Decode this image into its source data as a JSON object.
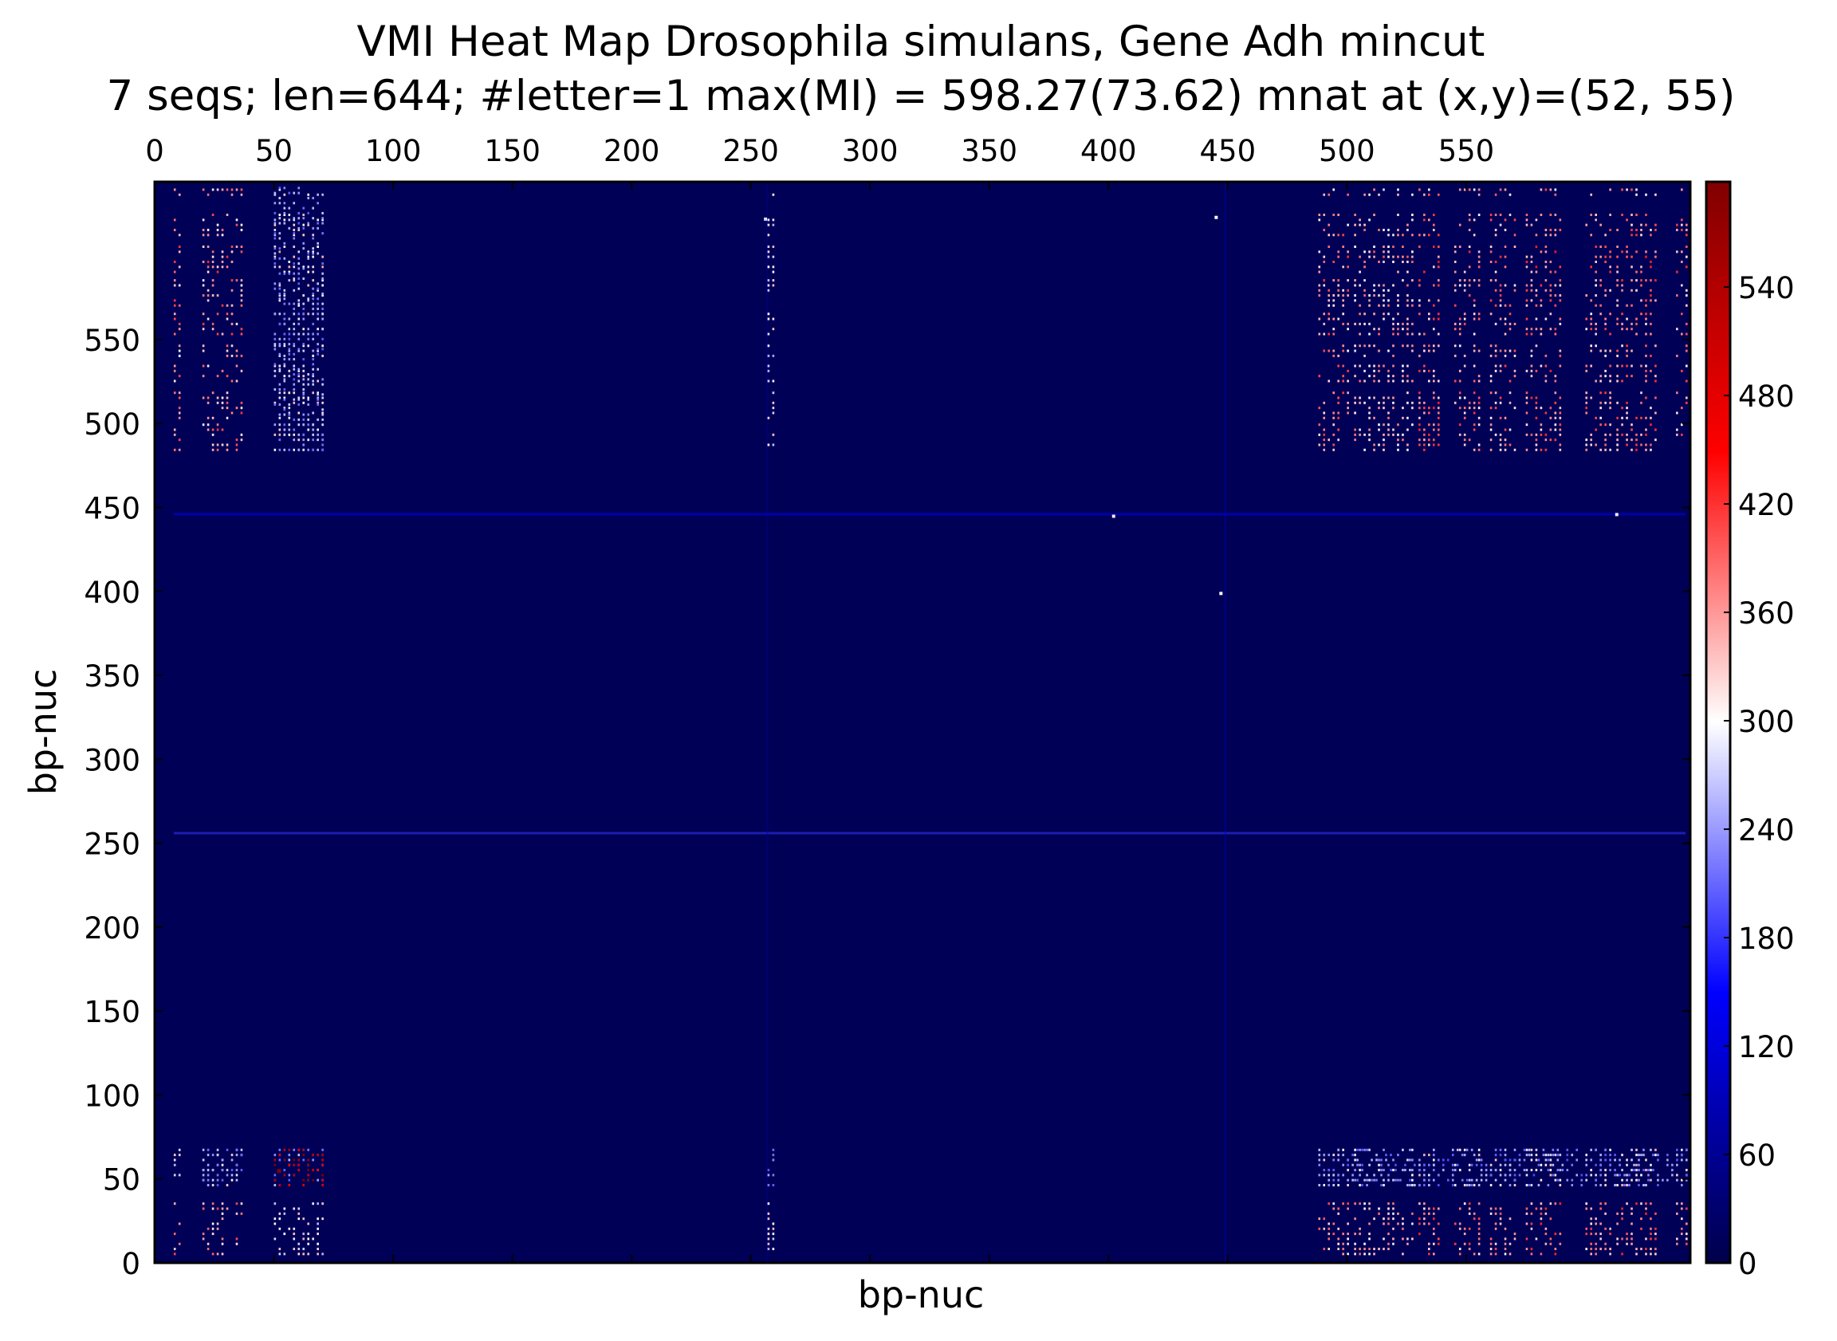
{
  "chart_data": {
    "type": "heatmap",
    "title": "VMI Heat Map Drosophila simulans, Gene Adh mincut",
    "subtitle": "7 seqs; len=644; #letter=1 max(MI) = 598.27(73.62) mnat at (x,y)=(52, 55)",
    "xlabel": "bp-nuc",
    "ylabel": "bp-nuc",
    "xlim": [
      0,
      644
    ],
    "ylim": [
      0,
      644
    ],
    "x_ticks": [
      0,
      50,
      100,
      150,
      200,
      250,
      300,
      350,
      400,
      450,
      500,
      550
    ],
    "y_ticks": [
      0,
      50,
      100,
      150,
      200,
      250,
      300,
      350,
      400,
      450,
      500,
      550
    ],
    "colorbar": {
      "range": [
        0,
        598.27
      ],
      "ticks": [
        0,
        60,
        120,
        180,
        240,
        300,
        360,
        420,
        480,
        540
      ],
      "colormap": [
        "#00004a",
        "#0000ff",
        "#ffffff",
        "#ff0000",
        "#800000"
      ]
    },
    "background_value": 10,
    "max_point": {
      "x": 52,
      "y": 55,
      "value": 598.27
    },
    "column_groups": [
      {
        "x_range": [
          8,
          10
        ],
        "value": 380
      },
      {
        "x_range": [
          20,
          36
        ],
        "value": 380
      },
      {
        "x_range": [
          50,
          70
        ],
        "value": 250
      },
      {
        "x_range": [
          257,
          259
        ],
        "value": 250
      },
      {
        "x_range": [
          488,
          500
        ],
        "value": 380
      },
      {
        "x_range": [
          503,
          517
        ],
        "value": 330
      },
      {
        "x_range": [
          519,
          528
        ],
        "value": 330
      },
      {
        "x_range": [
          530,
          538
        ],
        "value": 400
      },
      {
        "x_range": [
          545,
          556
        ],
        "value": 380
      },
      {
        "x_range": [
          560,
          570
        ],
        "value": 380
      },
      {
        "x_range": [
          575,
          590
        ],
        "value": 400
      },
      {
        "x_range": [
          600,
          610
        ],
        "value": 380
      },
      {
        "x_range": [
          613,
          630
        ],
        "value": 400
      },
      {
        "x_range": [
          638,
          642
        ],
        "value": 380
      }
    ],
    "row_groups": [
      {
        "y_range": [
          5,
          36
        ],
        "value": 380
      },
      {
        "y_range": [
          46,
          68
        ],
        "value": 230
      },
      {
        "y_range": [
          484,
          500
        ],
        "value": 380
      },
      {
        "y_range": [
          503,
          520
        ],
        "value": 380
      },
      {
        "y_range": [
          525,
          535
        ],
        "value": 380
      },
      {
        "y_range": [
          540,
          548
        ],
        "value": 360
      },
      {
        "y_range": [
          553,
          565
        ],
        "value": 380
      },
      {
        "y_range": [
          570,
          585
        ],
        "value": 380
      },
      {
        "y_range": [
          590,
          605
        ],
        "value": 400
      },
      {
        "y_range": [
          612,
          625
        ],
        "value": 380
      },
      {
        "y_range": [
          636,
          641
        ],
        "value": 350
      }
    ],
    "hot_spots": [
      {
        "x_range": [
          50,
          70
        ],
        "y_range": [
          46,
          68
        ],
        "value": 560
      },
      {
        "x_range": [
          20,
          36
        ],
        "y_range": [
          46,
          68
        ],
        "value": 250
      },
      {
        "x_range": [
          50,
          70
        ],
        "y_range": [
          484,
          641
        ],
        "value": 250
      },
      {
        "x_range": [
          488,
          642
        ],
        "y_range": [
          46,
          68
        ],
        "value": 240
      }
    ],
    "faint_lines": [
      {
        "orientation": "horizontal",
        "at": 256,
        "range": [
          8,
          642
        ],
        "value": 180
      },
      {
        "orientation": "horizontal",
        "at": 446,
        "range": [
          8,
          642
        ],
        "value": 140
      },
      {
        "orientation": "vertical",
        "at": 449,
        "range": [
          0,
          644
        ],
        "value": 90
      },
      {
        "orientation": "vertical",
        "at": 257,
        "range": [
          0,
          644
        ],
        "value": 70
      }
    ],
    "isolated_points": [
      {
        "x": 402,
        "y": 445,
        "value": 310
      },
      {
        "x": 447,
        "y": 399,
        "value": 300
      },
      {
        "x": 445,
        "y": 623,
        "value": 300
      },
      {
        "x": 256,
        "y": 622,
        "value": 280
      },
      {
        "x": 613,
        "y": 446,
        "value": 290
      }
    ]
  }
}
